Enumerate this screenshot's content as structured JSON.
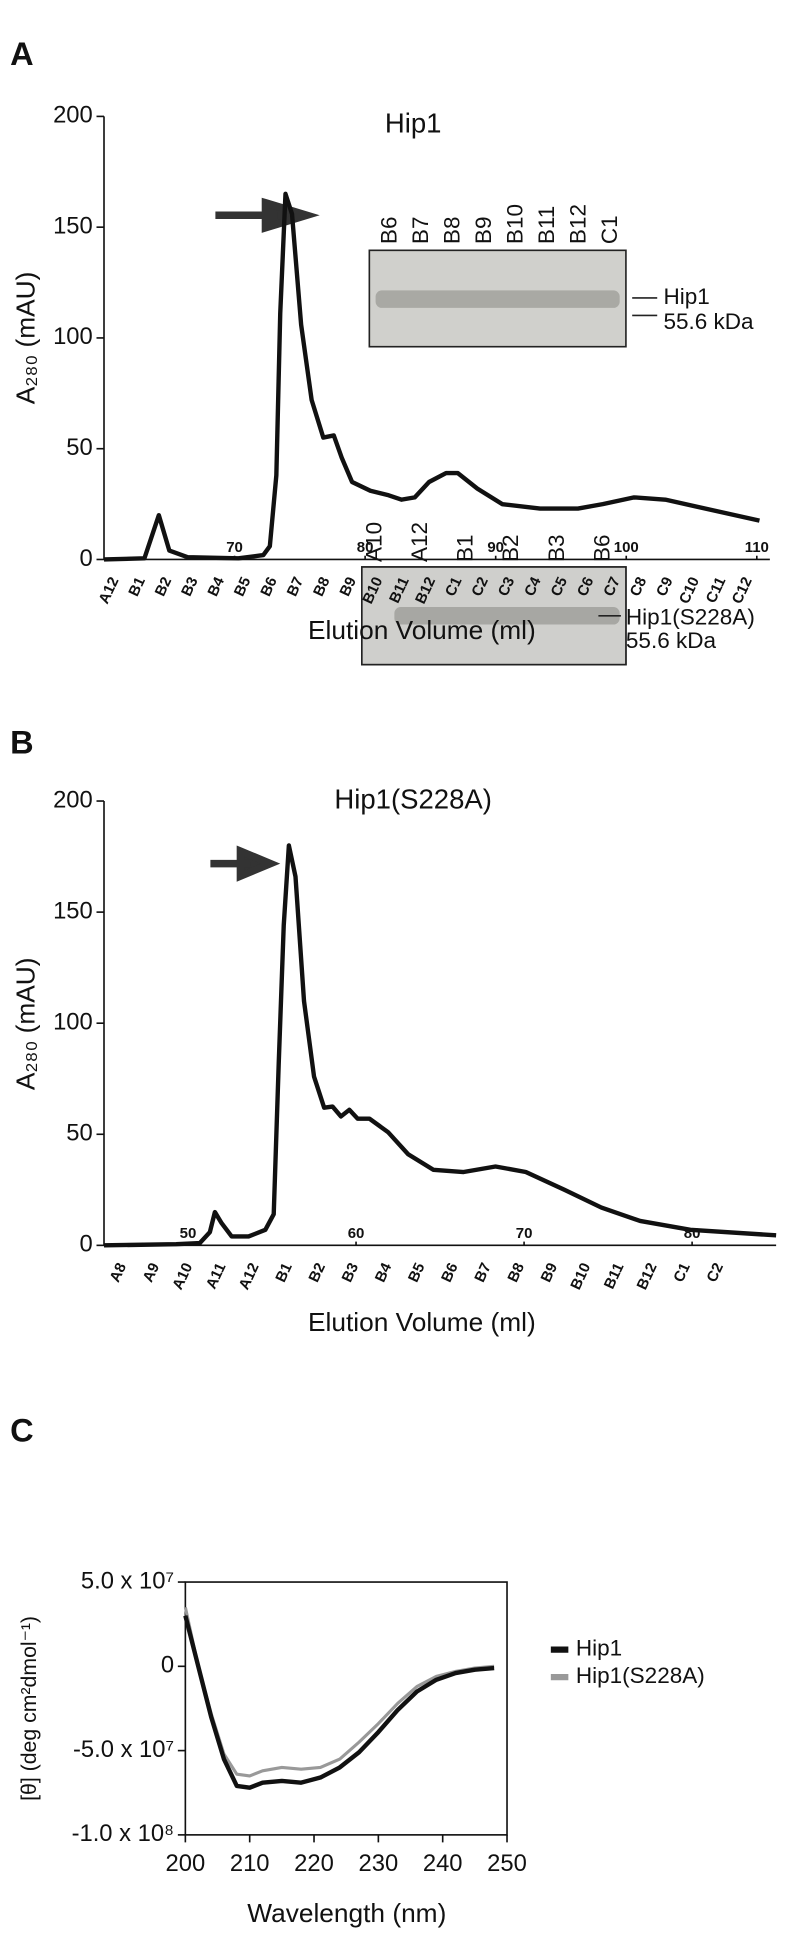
{
  "chart_data": [
    {
      "type": "line",
      "panel": "A",
      "title": "Hip1",
      "xlabel": "Elution Volume (ml)",
      "ylabel": "A₂₈₀ (mAU)",
      "xlim": [
        60,
        111
      ],
      "ylim": [
        0,
        200
      ],
      "xticks": [
        70,
        80,
        90,
        100,
        110
      ],
      "yticks": [
        0,
        50,
        100,
        150,
        200
      ],
      "color": "#111111",
      "x": [
        60,
        63.1,
        64.2,
        65,
        66.4,
        70.3,
        72.2,
        72.7,
        73.2,
        73.5,
        73.9,
        74.4,
        75.1,
        75.9,
        76.8,
        77.6,
        78.2,
        79,
        79.7,
        80.4,
        81.1,
        81.8,
        82.8,
        83.8,
        84.9,
        86.2,
        87.1,
        88.6,
        90.5,
        93.4,
        96.3,
        98.2,
        100.6,
        103,
        106.8,
        110.2
      ],
      "values": [
        0,
        0.5,
        20,
        4,
        1,
        0.5,
        2,
        6,
        38,
        111,
        165,
        156,
        106,
        72,
        55,
        56,
        46,
        35,
        33,
        31,
        30,
        29,
        27,
        28,
        35,
        39,
        39,
        32,
        25,
        23,
        23,
        25,
        28,
        27,
        22,
        17.5
      ],
      "fractions": [
        "A12",
        "B1",
        "B2",
        "B3",
        "B4",
        "B5",
        "B6",
        "B7",
        "B8",
        "B9",
        "B10",
        "B11",
        "B12",
        "C1",
        "C2",
        "C3",
        "C4",
        "C5",
        "C6",
        "C7",
        "C8",
        "C9",
        "C10",
        "C11",
        "C12"
      ],
      "gel": {
        "lanes": [
          "B6",
          "B7",
          "B8",
          "B9",
          "B10",
          "B11",
          "B12",
          "C1"
        ],
        "markers": [
          "Hip1",
          "55.6 kDa"
        ]
      }
    },
    {
      "type": "line",
      "panel": "B",
      "title": "Hip1(S228A)",
      "xlabel": "Elution Volume (ml)",
      "ylabel": "A₂₈₀ (mAU)",
      "xlim": [
        45,
        85
      ],
      "ylim": [
        0,
        200
      ],
      "xticks": [
        50,
        60,
        70,
        80
      ],
      "yticks": [
        0,
        50,
        100,
        150,
        200
      ],
      "color": "#111111",
      "x": [
        45,
        49.3,
        50.7,
        51.3,
        51.6,
        52,
        52.6,
        53.6,
        54.6,
        55.1,
        55.4,
        55.7,
        56,
        56.4,
        56.9,
        57.5,
        58.1,
        58.6,
        59.1,
        59.6,
        60.1,
        60.8,
        61.9,
        63.1,
        64.6,
        66.4,
        68.3,
        70.1,
        72.4,
        74.6,
        76.9,
        79.9,
        85
      ],
      "values": [
        0,
        0.5,
        1,
        6,
        15,
        10,
        4,
        4,
        7,
        14,
        82,
        144,
        180,
        166,
        110,
        76,
        62,
        62.5,
        58,
        61,
        57,
        57,
        51,
        41,
        34,
        33,
        35.5,
        33,
        25,
        17,
        11,
        7,
        4.5
      ],
      "fractions": [
        "A8",
        "A9",
        "A10",
        "A11",
        "A12",
        "B1",
        "B2",
        "B3",
        "B4",
        "B5",
        "B6",
        "B7",
        "B8",
        "B9",
        "B10",
        "B11",
        "B12",
        "C1",
        "C2"
      ],
      "gel": {
        "lanes": [
          "A10",
          "A12",
          "B1",
          "B2",
          "B3",
          "B6"
        ],
        "markers": [
          "Hip1(S228A)",
          "55.6 kDa"
        ]
      }
    },
    {
      "type": "line",
      "panel": "C",
      "xlabel": "Wavelength (nm)",
      "ylabel": "[θ] (deg cm²dmol⁻¹)",
      "xlim": [
        200,
        250
      ],
      "ylim": [
        -100000000,
        50000000
      ],
      "xticks": [
        200,
        210,
        220,
        230,
        240,
        250
      ],
      "yticks": [
        {
          "value": 50000000,
          "label": "5.0 x 10⁷"
        },
        0,
        {
          "value": -50000000,
          "label": "-5.0 x 10⁷"
        },
        {
          "value": -100000000,
          "label": "-1.0 x 10⁸"
        }
      ],
      "legend": "right",
      "x": [
        200,
        202,
        204,
        206,
        208,
        210,
        212,
        215,
        218,
        221,
        224,
        227,
        230,
        233,
        236,
        239,
        242,
        245,
        248
      ],
      "series": [
        {
          "name": "Hip1",
          "color": "#111111",
          "values": [
            30000000,
            0,
            -30000000,
            -55000000,
            -71000000,
            -72000000,
            -69000000,
            -68000000,
            -69000000,
            -66000000,
            -60000000,
            -51000000,
            -39000000,
            -26000000,
            -15000000,
            -8000000,
            -4000000,
            -2000000,
            -1000000
          ]
        },
        {
          "name": "Hip1(S228A)",
          "color": "#999999",
          "values": [
            35000000,
            0,
            -28000000,
            -52000000,
            -64000000,
            -65000000,
            -62000000,
            -60000000,
            -61000000,
            -60000000,
            -55000000,
            -45000000,
            -34000000,
            -22000000,
            -12000000,
            -6000000,
            -3000000,
            -1000000,
            0
          ]
        }
      ]
    }
  ]
}
